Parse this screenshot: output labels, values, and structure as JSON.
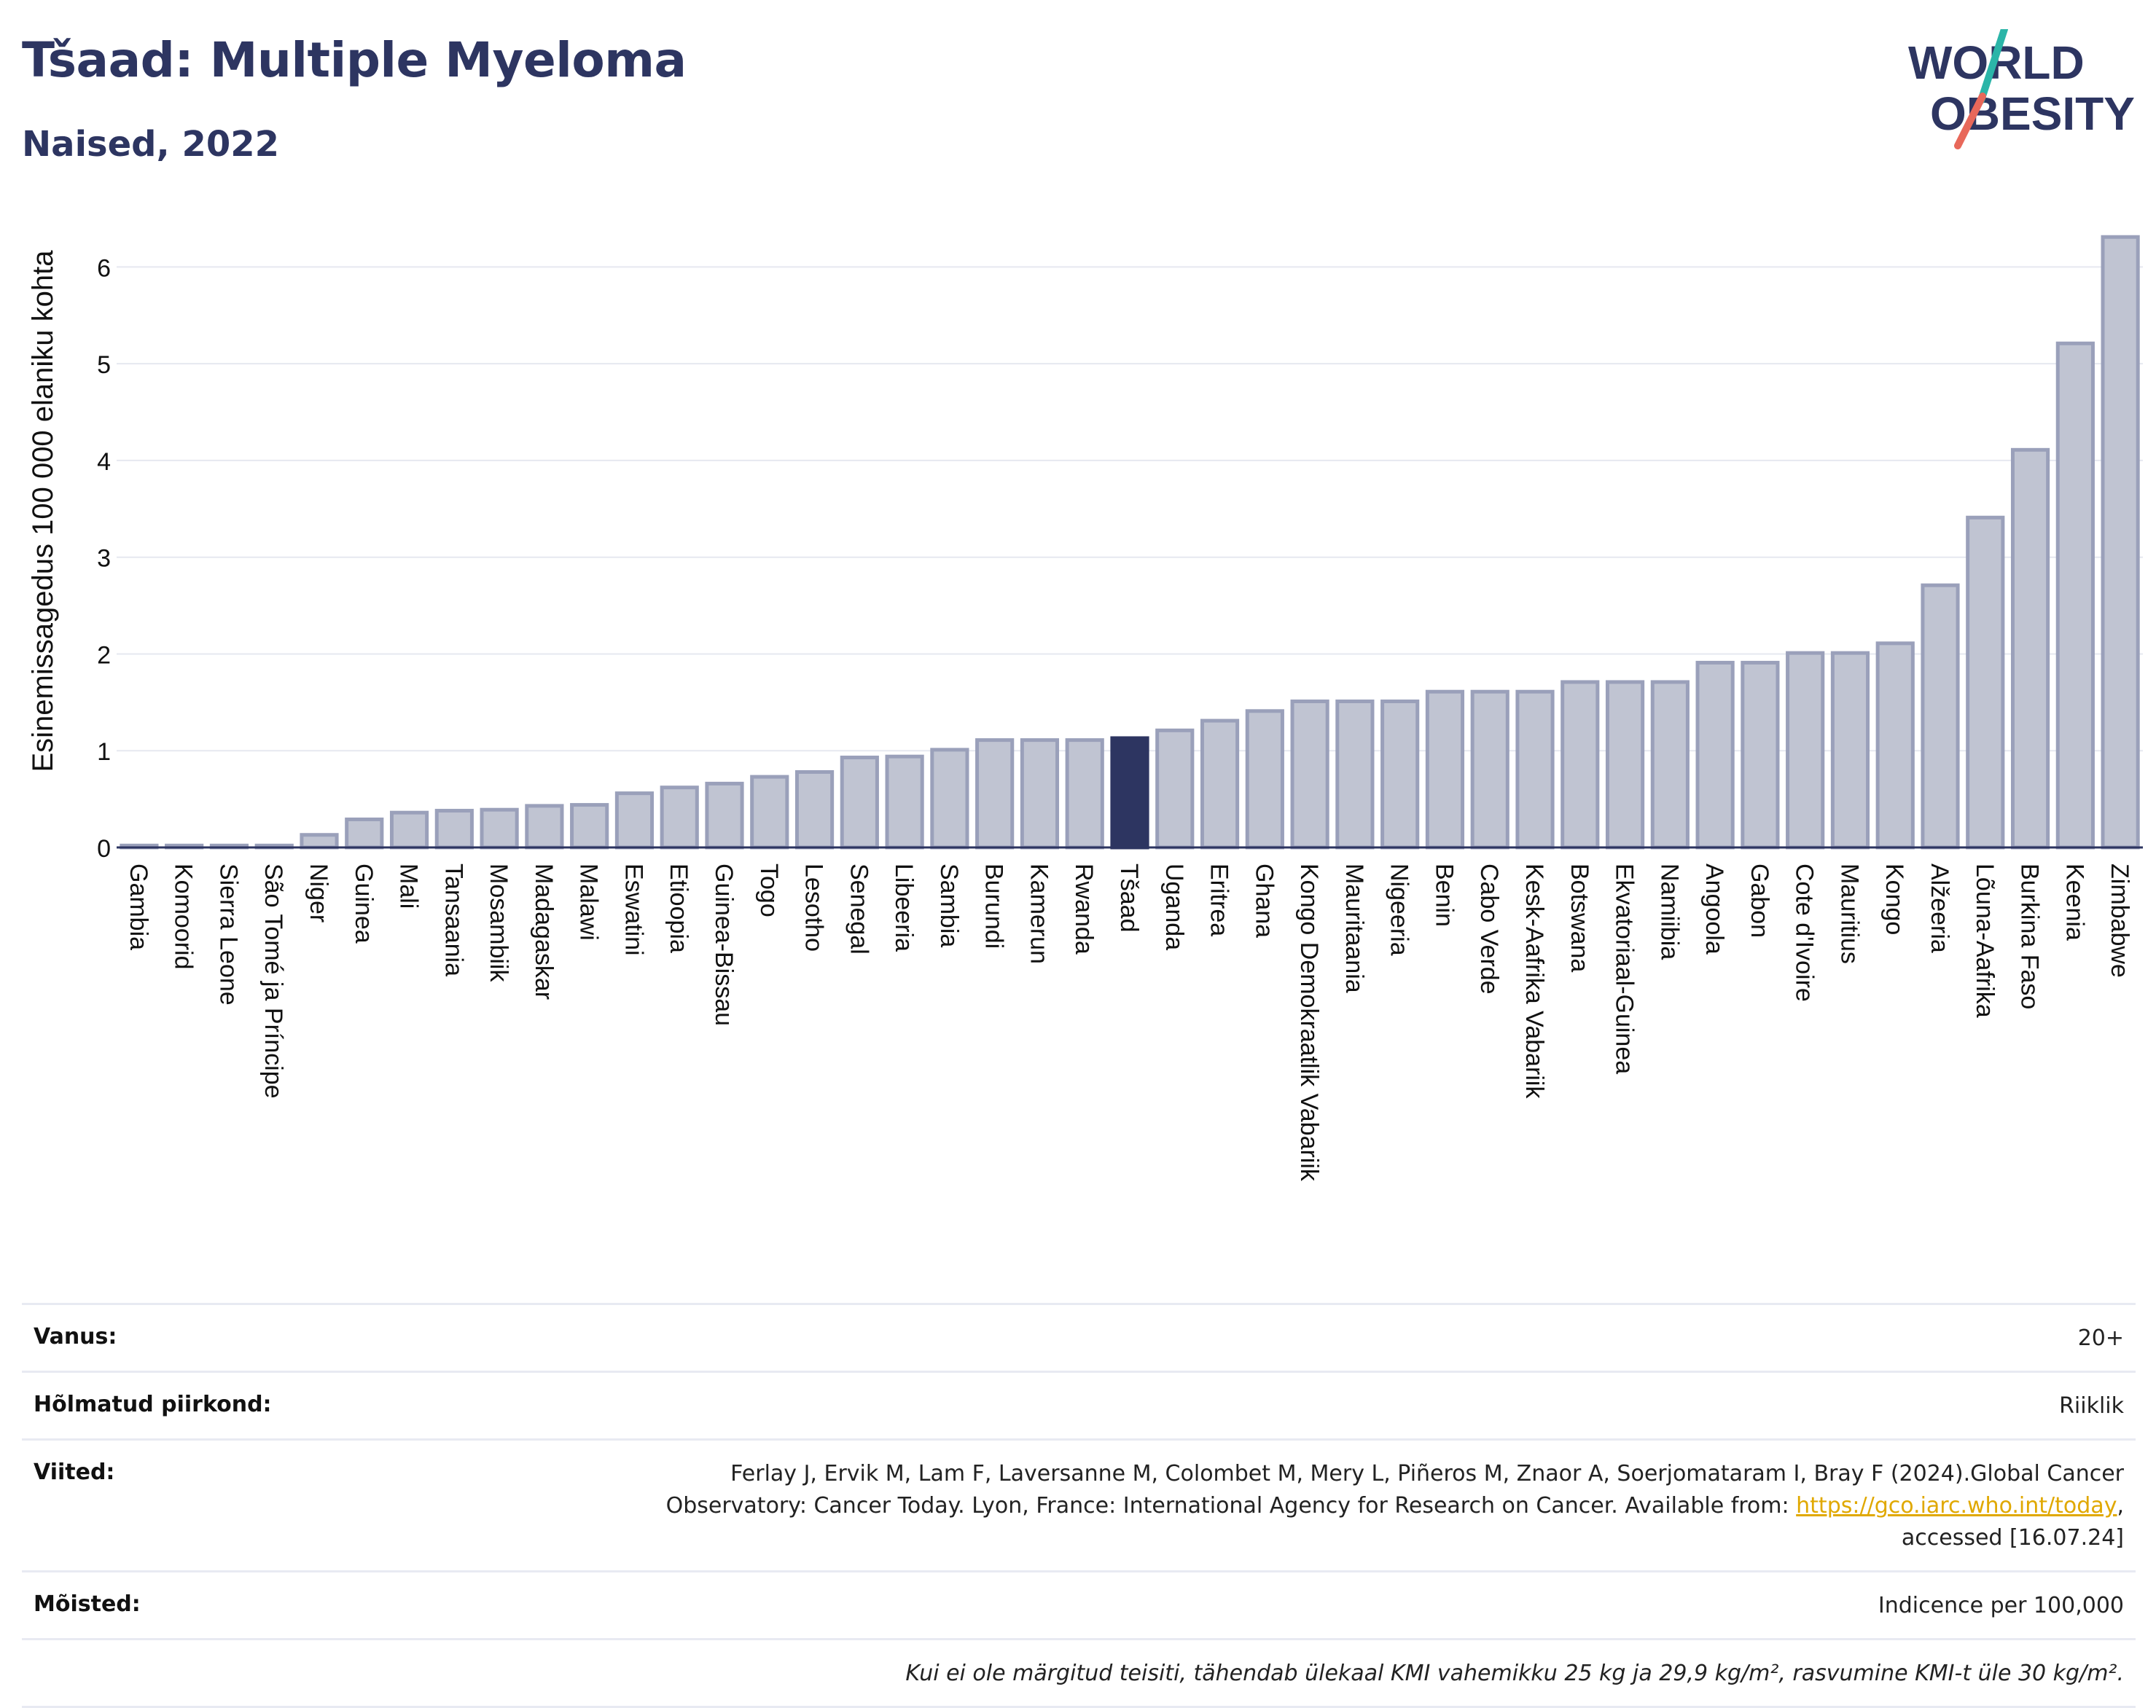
{
  "header": {
    "title": "Tšaad: Multiple Myeloma",
    "subtitle": "Naised, 2022"
  },
  "logo": {
    "line1": "WORLD",
    "line2": "OBESITY"
  },
  "colors": {
    "bar": "#c0c4d2",
    "bar_stroke": "#9aa0ba",
    "highlight": "#2d3561",
    "title": "#2d3561",
    "link": "#e0a800",
    "logo_teal": "#2bb5a8",
    "logo_red": "#e8685a"
  },
  "chart_data": {
    "type": "bar",
    "ylabel": "Esinemissagedus 100 000 elaniku kohta",
    "xlabel": "",
    "ylim": [
      0,
      6.5
    ],
    "yticks": [
      0,
      1,
      2,
      3,
      4,
      5,
      6
    ],
    "grid": true,
    "highlight": "Tšaad",
    "categories": [
      "Gambia",
      "Komoorid",
      "Sierra Leone",
      "São Tomé ja Príncipe",
      "Niger",
      "Guinea",
      "Mali",
      "Tansaania",
      "Mosambiik",
      "Madagaskar",
      "Malawi",
      "Eswatini",
      "Etioopia",
      "Guinea-Bissau",
      "Togo",
      "Lesotho",
      "Senegal",
      "Libeeria",
      "Sambia",
      "Burundi",
      "Kamerun",
      "Rwanda",
      "Tšaad",
      "Uganda",
      "Eritrea",
      "Ghana",
      "Kongo Demokraatlik Vabariik",
      "Mauritaania",
      "Nigeeria",
      "Benin",
      "Cabo Verde",
      "Kesk-Aafrika Vabariik",
      "Botswana",
      "Ekvatoriaal-Guinea",
      "Namiibia",
      "Angoola",
      "Gabon",
      "Cote d'Ivoire",
      "Mauritius",
      "Kongo",
      "Alžeeria",
      "Lõuna-Aafrika",
      "Burkina Faso",
      "Keenia",
      "Zimbabwe"
    ],
    "values": [
      0.02,
      0.02,
      0.02,
      0.02,
      0.13,
      0.29,
      0.36,
      0.38,
      0.39,
      0.43,
      0.44,
      0.56,
      0.62,
      0.66,
      0.73,
      0.78,
      0.93,
      0.94,
      1.01,
      1.11,
      1.11,
      1.11,
      1.13,
      1.21,
      1.31,
      1.41,
      1.51,
      1.51,
      1.51,
      1.61,
      1.61,
      1.61,
      1.71,
      1.71,
      1.71,
      1.91,
      1.91,
      2.01,
      2.01,
      2.11,
      2.71,
      3.41,
      4.11,
      5.21,
      6.31
    ]
  },
  "info": {
    "age_label": "Vanus:",
    "age_value": "20+",
    "coverage_label": "Hõlmatud piirkond:",
    "coverage_value": "Riiklik",
    "refs_label": "Viited:",
    "refs_line1": "Ferlay J, Ervik M, Lam F, Laversanne M, Colombet M, Mery L, Piñeros M, Znaor A, Soerjomataram I, Bray F (2024).Global Cancer",
    "refs_line2_pre": "Observatory: Cancer Today. Lyon, France: International Agency for Research on Cancer. Available from: ",
    "refs_link": "https://gco.iarc.who.int/today",
    "refs_line2_post": ",",
    "refs_line3": "accessed [16.07.24]",
    "defs_label": "Mõisted:",
    "defs_value": "Indicence per 100,000",
    "note": "Kui ei ole märgitud teisiti, tähendab ülekaal KMI vahemikku 25 kg ja 29,9 kg/m², rasvumine KMI-t üle 30 kg/m²."
  }
}
